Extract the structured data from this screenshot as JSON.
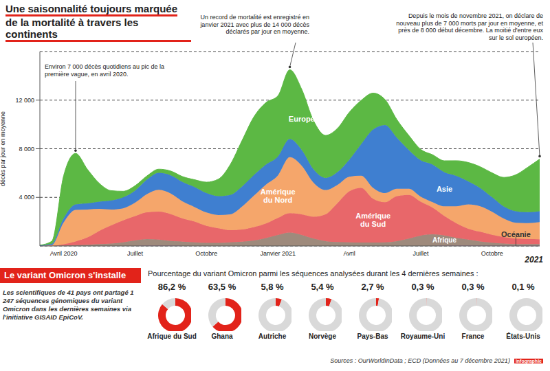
{
  "chart_data": [
    {
      "type": "area",
      "stacked": true,
      "grid": true,
      "title": "Une saisonnalité toujours marquée de la mortalité à travers les continents",
      "y_label": "décès par jour en moyenne",
      "categories": [
        null,
        null,
        "Avril 2020",
        null,
        null,
        null,
        null,
        null,
        "Juillet",
        null,
        null,
        null,
        null,
        null,
        "Octobre",
        null,
        null,
        null,
        null,
        null,
        "Janvier 2021",
        null,
        null,
        null,
        null,
        null,
        "Avril",
        null,
        null,
        null,
        null,
        null,
        "Juillet",
        null,
        null,
        null,
        null,
        null,
        "Octobre",
        null,
        null,
        null,
        null
      ],
      "x_note": "2021",
      "ylim": [
        0,
        16000
      ],
      "yticks": [
        {
          "value": 4000,
          "label": "4 000"
        },
        {
          "value": 8000,
          "label": "8 000"
        },
        {
          "value": 12000,
          "label": "12 000"
        }
      ],
      "series": [
        {
          "name": "Océanie",
          "color": "#9b59b6",
          "values": [
            0,
            1,
            3,
            2,
            1,
            0,
            0,
            1,
            5,
            15,
            20,
            15,
            5,
            1,
            1,
            1,
            1,
            1,
            1,
            1,
            1,
            2,
            2,
            2,
            1,
            1,
            1,
            1,
            1,
            1,
            1,
            1,
            2,
            5,
            10,
            15,
            20,
            20,
            15,
            12,
            10,
            8,
            8
          ]
        },
        {
          "name": "Afrique",
          "color": "#9e8a7c",
          "values": [
            0,
            5,
            40,
            70,
            100,
            150,
            200,
            300,
            450,
            550,
            500,
            400,
            350,
            300,
            250,
            250,
            300,
            350,
            450,
            650,
            900,
            1100,
            900,
            600,
            400,
            320,
            300,
            280,
            280,
            300,
            400,
            600,
            850,
            950,
            850,
            650,
            500,
            350,
            250,
            180,
            150,
            150,
            150
          ]
        },
        {
          "name": "Amérique du Sud",
          "color": "#e8676a",
          "values": [
            0,
            10,
            100,
            300,
            600,
            1100,
            1500,
            1800,
            2000,
            2200,
            2300,
            2200,
            1900,
            1700,
            1400,
            1200,
            1000,
            1000,
            1100,
            1200,
            1400,
            1600,
            1700,
            1800,
            2200,
            3200,
            4200,
            4500,
            3600,
            3300,
            3700,
            3600,
            2800,
            2200,
            1600,
            1200,
            900,
            800,
            650,
            550,
            450,
            420,
            400
          ]
        },
        {
          "name": "Amérique du Nord",
          "color": "#f5a66b",
          "values": [
            2,
            50,
            1800,
            2600,
            2300,
            1800,
            1300,
            1000,
            1100,
            1500,
            1800,
            1700,
            1400,
            1200,
            1100,
            1100,
            1300,
            1900,
            2600,
            3200,
            3500,
            4600,
            4000,
            2800,
            2000,
            1500,
            1200,
            1000,
            900,
            750,
            600,
            500,
            400,
            450,
            800,
            1400,
            2000,
            2100,
            1900,
            1500,
            1300,
            1300,
            1400
          ]
        },
        {
          "name": "Asie",
          "color": "#3f7fd0",
          "values": [
            60,
            120,
            350,
            450,
            500,
            600,
            750,
            900,
            1000,
            1200,
            1400,
            1500,
            1600,
            1650,
            1600,
            1550,
            1600,
            1650,
            1700,
            1650,
            1550,
            1500,
            1300,
            1100,
            1000,
            1050,
            1400,
            2600,
            4800,
            5600,
            4200,
            3200,
            3000,
            3100,
            2800,
            2500,
            1900,
            1500,
            1200,
            1000,
            950,
            900,
            900
          ]
        },
        {
          "name": "Europe",
          "color": "#5cb844",
          "values": [
            2,
            200,
            3500,
            4200,
            2800,
            1500,
            800,
            500,
            400,
            300,
            300,
            350,
            450,
            600,
            900,
            1400,
            2500,
            3800,
            4800,
            5100,
            5000,
            5700,
            5000,
            4000,
            3500,
            3600,
            3900,
            3600,
            3000,
            2100,
            1500,
            1200,
            900,
            800,
            950,
            1250,
            1550,
            1750,
            2000,
            2400,
            3000,
            3700,
            4300
          ]
        }
      ],
      "annotations": [
        "Environ 7 000 décès quotidiens au pic de la première vague, en avril 2020.",
        "Un record de mortalité est enregistré en janvier 2021 avec plus de 14 000 décès déclarés par jour en moyenne.",
        "Depuis le mois de novembre 2021, on déclare de nouveau plus de 7 000 morts par jour en moyenne, et près de 8 000 début décembre. La moitié d'entre eux sur le sol européen."
      ]
    },
    {
      "type": "donut",
      "heading": "Le variant Omicron s'installe",
      "note": "Les scientifiques de 41 pays ont partagé 1 247 séquences génomiques du variant Omicron dans les dernières semaines via l'initiative GISAID EpiCoV.",
      "title": "Pourcentage du variant Omicron parmi les séquences analysées durant les 4 dernières semaines :",
      "categories": [
        "Afrique du Sud",
        "Ghana",
        "Autriche",
        "Norvège",
        "Pays-Bas",
        "Royaume-Uni",
        "France",
        "États-Unis"
      ],
      "values": [
        86.2,
        63.5,
        5.8,
        5.4,
        2.7,
        0.3,
        0.3,
        0.1
      ],
      "value_labels": [
        "86,2 %",
        "63,5 %",
        "5,8 %",
        "5,4 %",
        "2,7 %",
        "0,3 %",
        "0,3 %",
        "0,1 %"
      ],
      "data_labels": true,
      "color": "#e2231a"
    }
  ],
  "source": "Sources : OurWorldInData ; ECD (Données au 7 décembre 2021)",
  "credit": "infographie"
}
